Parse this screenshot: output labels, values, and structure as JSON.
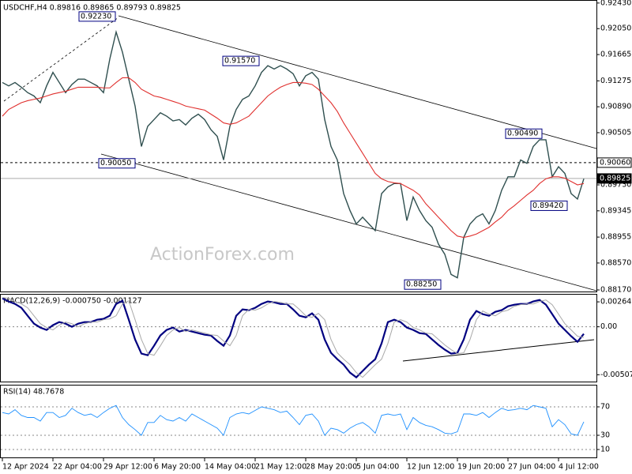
{
  "chart_data": {
    "type": "line",
    "title": "USDCHF,H4  0.89816 0.89865 0.89793 0.89825",
    "watermark": "ActionForex.com",
    "categories": [
      "12 Apr 2024",
      null,
      null,
      null,
      null,
      null,
      null,
      null,
      "22 Apr 04:00",
      null,
      null,
      null,
      null,
      null,
      null,
      null,
      "29 Apr 12:00",
      null,
      null,
      null,
      null,
      null,
      null,
      null,
      "6 May 20:00",
      null,
      null,
      null,
      null,
      null,
      null,
      null,
      "14 May 04:00",
      null,
      null,
      null,
      null,
      null,
      null,
      null,
      "21 May 12:00",
      null,
      null,
      null,
      null,
      null,
      null,
      null,
      "28 May 20:00",
      null,
      null,
      null,
      null,
      null,
      null,
      null,
      "5 Jun 04:00",
      null,
      null,
      null,
      null,
      null,
      null,
      null,
      "12 Jun 12:00",
      null,
      null,
      null,
      null,
      null,
      null,
      null,
      "19 Jun 20:00",
      null,
      null,
      null,
      null,
      null,
      null,
      null,
      "27 Jun 04:00",
      null,
      null,
      null,
      null,
      null,
      null,
      null,
      "4 Jul 12:00",
      null,
      null,
      null,
      null
    ],
    "series": [
      {
        "name": "USDCHF",
        "color": "#2f4f4f",
        "values": [
          0.9125,
          0.912,
          0.9125,
          0.9118,
          0.911,
          0.9105,
          0.9095,
          0.912,
          0.914,
          0.9125,
          0.911,
          0.9122,
          0.913,
          0.913,
          0.9125,
          0.912,
          0.911,
          0.916,
          0.92,
          0.917,
          0.913,
          0.909,
          0.903,
          0.906,
          0.907,
          0.908,
          0.9075,
          0.9068,
          0.907,
          0.9062,
          0.9072,
          0.9078,
          0.907,
          0.9055,
          0.9045,
          0.901,
          0.906,
          0.9085,
          0.91,
          0.9105,
          0.912,
          0.914,
          0.915,
          0.9145,
          0.915,
          0.9145,
          0.9138,
          0.912,
          0.9135,
          0.914,
          0.913,
          0.907,
          0.903,
          0.901,
          0.896,
          0.8935,
          0.8915,
          0.8925,
          0.8915,
          0.8905,
          0.896,
          0.897,
          0.8975,
          0.8975,
          0.892,
          0.8955,
          0.8935,
          0.892,
          0.891,
          0.8885,
          0.887,
          0.884,
          0.8835,
          0.8895,
          0.8915,
          0.8925,
          0.893,
          0.8915,
          0.8935,
          0.8965,
          0.8985,
          0.8985,
          0.901,
          0.9005,
          0.903,
          0.904,
          0.904,
          0.8985,
          0.9,
          0.899,
          0.896,
          0.8952,
          0.8982
        ]
      },
      {
        "name": "MA",
        "color": "#e0302e",
        "values": [
          0.9075,
          0.9085,
          0.909,
          0.9095,
          0.9098,
          0.91,
          0.9102,
          0.9105,
          0.9108,
          0.911,
          0.9112,
          0.9115,
          0.9118,
          0.9118,
          0.9118,
          0.9118,
          0.9117,
          0.9117,
          0.9125,
          0.9132,
          0.9132,
          0.9125,
          0.9115,
          0.911,
          0.9105,
          0.9103,
          0.91,
          0.9097,
          0.9094,
          0.909,
          0.9088,
          0.9086,
          0.9084,
          0.9078,
          0.9072,
          0.9065,
          0.9063,
          0.9065,
          0.907,
          0.9075,
          0.9085,
          0.9095,
          0.9105,
          0.9112,
          0.9118,
          0.9122,
          0.9125,
          0.9125,
          0.9124,
          0.9122,
          0.9115,
          0.9105,
          0.9095,
          0.9082,
          0.9065,
          0.905,
          0.9035,
          0.902,
          0.9005,
          0.899,
          0.8982,
          0.8978,
          0.8976,
          0.8975,
          0.897,
          0.8965,
          0.8958,
          0.8945,
          0.8935,
          0.8925,
          0.8915,
          0.8905,
          0.8897,
          0.8895,
          0.8897,
          0.89,
          0.8905,
          0.891,
          0.8918,
          0.8925,
          0.8935,
          0.8942,
          0.895,
          0.8958,
          0.8965,
          0.8975,
          0.8982,
          0.8985,
          0.8985,
          0.8983,
          0.8978,
          0.8973,
          0.8975
        ]
      }
    ],
    "ylim": [
      0.88135,
      0.92475
    ],
    "yticks": [
      {
        "value": 0.9243,
        "label": "0.92430"
      },
      {
        "value": 0.9205,
        "label": "0.92050"
      },
      {
        "value": 0.91665,
        "label": "0.91665"
      },
      {
        "value": 0.91275,
        "label": "0.91275"
      },
      {
        "value": 0.9089,
        "label": "0.90890"
      },
      {
        "value": 0.90505,
        "label": "0.90505"
      },
      {
        "value": 0.8973,
        "label": "0.89730"
      },
      {
        "value": 0.89345,
        "label": "0.89345"
      },
      {
        "value": 0.88955,
        "label": "0.88955"
      },
      {
        "value": 0.8857,
        "label": "0.88570"
      },
      {
        "value": 0.8817,
        "label": "0.88170"
      }
    ],
    "hlines": [
      {
        "value": 0.9006,
        "label": "0.90060"
      },
      {
        "value": 0.89825,
        "label": "0.89825"
      }
    ],
    "annotations": [
      {
        "value": 0.9223,
        "label": "0.92230"
      },
      {
        "value": 0.9157,
        "label": "0.91570"
      },
      {
        "value": 0.9049,
        "label": "0.90490"
      },
      {
        "value": 0.9005,
        "label": "0.90050"
      },
      {
        "value": 0.8942,
        "label": "0.89420"
      },
      {
        "value": 0.8825,
        "label": "0.88250"
      }
    ],
    "macd": {
      "title": "MACD(12,26,9) -0.000750 -0.001127",
      "ylim": [
        -0.0058,
        0.0034
      ],
      "yticks": [
        {
          "value": 0.00264,
          "label": "0.00264"
        },
        {
          "value": 0,
          "label": "0.00"
        },
        {
          "value": -0.005077,
          "label": "-0.005077"
        }
      ],
      "series": [
        {
          "name": "MACD",
          "color": "#000080",
          "values": [
            0.00301,
            0.00268,
            0.00242,
            0.00201,
            0.00117,
            0.00033,
            -8e-05,
            -0.00033,
            0.00017,
            0.0005,
            0.00033,
            0,
            0.00033,
            0.0005,
            0.0005,
            0.00075,
            0.00084,
            0.00117,
            0.00242,
            0.00276,
            0.00075,
            -0.00134,
            -0.00284,
            -0.00301,
            -0.00201,
            -0.00092,
            -0.00033,
            -8e-05,
            -0.0005,
            -0.00033,
            -0.0005,
            -0.00067,
            -0.00084,
            -0.00092,
            -0.0015,
            -0.00201,
            -0.00092,
            0.00117,
            0.00184,
            0.00176,
            0.00201,
            0.00242,
            0.00268,
            0.00259,
            0.00242,
            0.00242,
            0.00184,
            0.00117,
            0.001,
            0.00142,
            0.00075,
            -0.00134,
            -0.00276,
            -0.00343,
            -0.00401,
            -0.00485,
            -0.00535,
            -0.00468,
            -0.00401,
            -0.00343,
            -0.00176,
            0.0005,
            0.00075,
            0.0005,
            -8e-05,
            -0.00033,
            -0.00067,
            -0.00075,
            -0.00134,
            -0.00192,
            -0.00242,
            -0.00284,
            -0.00276,
            -0.00134,
            0.00075,
            0.00167,
            0.00134,
            0.00117,
            0.00159,
            0.00176,
            0.00217,
            0.00234,
            0.00242,
            0.00242,
            0.00268,
            0.00284,
            0.00234,
            0.00134,
            0.00033,
            -0.00033,
            -0.001,
            -0.00159,
            -0.00075
          ]
        },
        {
          "name": "Signal",
          "color": "#a9a9a9",
          "values": [
            0.0031,
            0.00301,
            0.00268,
            0.00242,
            0.00201,
            0.00117,
            0.00033,
            -8e-05,
            -0.00033,
            0.00017,
            0.0005,
            0.00033,
            0,
            0.00033,
            0.0005,
            0.0005,
            0.00075,
            0.00084,
            0.00117,
            0.00242,
            0.00276,
            0.00075,
            -0.00134,
            -0.00284,
            -0.00301,
            -0.00201,
            -0.00092,
            -0.00033,
            -8e-05,
            -0.0005,
            -0.00033,
            -0.0005,
            -0.00067,
            -0.00084,
            -0.00092,
            -0.0015,
            -0.00201,
            -0.00092,
            0.00117,
            0.00184,
            0.00176,
            0.00201,
            0.00242,
            0.00268,
            0.00259,
            0.00242,
            0.00242,
            0.00184,
            0.00117,
            0.001,
            0.00142,
            0.00075,
            -0.00134,
            -0.00276,
            -0.00343,
            -0.00401,
            -0.00485,
            -0.00535,
            -0.00468,
            -0.00401,
            -0.00343,
            -0.00176,
            0.0005,
            0.00075,
            0.0005,
            -8e-05,
            -0.00033,
            -0.00067,
            -0.00075,
            -0.00134,
            -0.00192,
            -0.00242,
            -0.00284,
            -0.00276,
            -0.00134,
            0.00075,
            0.00167,
            0.00134,
            0.00117,
            0.00159,
            0.00176,
            0.00217,
            0.00234,
            0.00242,
            0.00242,
            0.00268,
            0.00284,
            0.00234,
            0.00134,
            0.00033,
            -0.00033,
            -0.001,
            -0.00113
          ]
        }
      ]
    },
    "rsi": {
      "title": "RSI(14) 48.7678",
      "ylim": [
        0,
        100
      ],
      "yticks": [
        70,
        30,
        10
      ],
      "series": [
        {
          "name": "RSI",
          "color": "#1e90ff",
          "values": [
            62,
            60,
            66,
            58,
            55,
            55,
            50,
            62,
            62,
            55,
            58,
            68,
            62,
            58,
            60,
            55,
            62,
            68,
            72,
            55,
            45,
            38,
            30,
            48,
            48,
            58,
            52,
            50,
            55,
            50,
            60,
            55,
            50,
            45,
            40,
            30,
            55,
            60,
            62,
            60,
            65,
            70,
            68,
            66,
            62,
            64,
            55,
            45,
            58,
            60,
            50,
            30,
            40,
            38,
            33,
            40,
            45,
            48,
            42,
            33,
            58,
            60,
            58,
            60,
            38,
            55,
            48,
            44,
            42,
            38,
            33,
            32,
            35,
            60,
            60,
            58,
            62,
            55,
            62,
            68,
            65,
            66,
            68,
            66,
            72,
            70,
            68,
            42,
            52,
            45,
            32,
            30,
            49
          ]
        }
      ]
    }
  }
}
